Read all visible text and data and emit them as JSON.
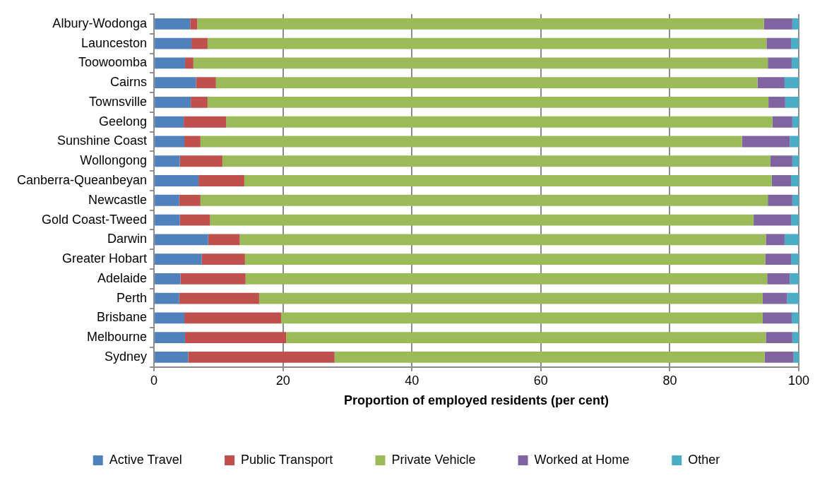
{
  "chart_data": {
    "type": "bar",
    "orientation": "horizontal",
    "stacked": true,
    "xlabel": "Proportion of employed residents (per cent)",
    "categories": [
      "Albury-Wodonga",
      "Launceston",
      "Toowoomba",
      "Cairns",
      "Townsville",
      "Geelong",
      "Sunshine Coast",
      "Wollongong",
      "Canberra-Queanbeyan",
      "Newcastle",
      "Gold Coast-Tweed",
      "Darwin",
      "Greater Hobart",
      "Adelaide",
      "Perth",
      "Brisbane",
      "Melbourne",
      "Sydney"
    ],
    "series": [
      {
        "name": "Active Travel",
        "color": "#4f81bd",
        "values": [
          5.6,
          5.8,
          4.8,
          6.5,
          5.7,
          4.6,
          4.7,
          4.0,
          6.9,
          3.9,
          4.0,
          8.4,
          7.4,
          4.1,
          3.9,
          4.7,
          4.8,
          5.3
        ]
      },
      {
        "name": "Public Transport",
        "color": "#c0504d",
        "values": [
          1.1,
          2.5,
          1.3,
          3.1,
          2.6,
          6.6,
          2.5,
          6.6,
          7.1,
          3.3,
          4.7,
          4.9,
          6.7,
          10.1,
          12.4,
          15.0,
          15.7,
          22.7
        ]
      },
      {
        "name": "Private Vehicle",
        "color": "#9bbb59",
        "values": [
          87.9,
          86.7,
          89.1,
          84.0,
          87.0,
          84.7,
          84.0,
          85.0,
          81.8,
          88.0,
          84.3,
          81.6,
          80.7,
          80.9,
          78.1,
          74.7,
          74.4,
          66.7
        ]
      },
      {
        "name": "Worked at Home",
        "color": "#8064a2",
        "values": [
          4.4,
          3.8,
          3.7,
          4.2,
          2.6,
          3.1,
          7.4,
          3.4,
          3.0,
          3.8,
          5.8,
          2.9,
          4.0,
          3.5,
          3.8,
          4.5,
          4.1,
          4.5
        ]
      },
      {
        "name": "Other",
        "color": "#4bacc6",
        "values": [
          1.0,
          1.2,
          1.1,
          2.2,
          2.1,
          1.0,
          1.4,
          1.0,
          1.2,
          1.0,
          1.2,
          2.2,
          1.2,
          1.4,
          1.8,
          1.1,
          1.0,
          0.8
        ]
      }
    ],
    "xlim": [
      0,
      100
    ],
    "xticks": [
      0,
      20,
      40,
      60,
      80,
      100
    ],
    "grid": "x",
    "legend": "bottom"
  }
}
